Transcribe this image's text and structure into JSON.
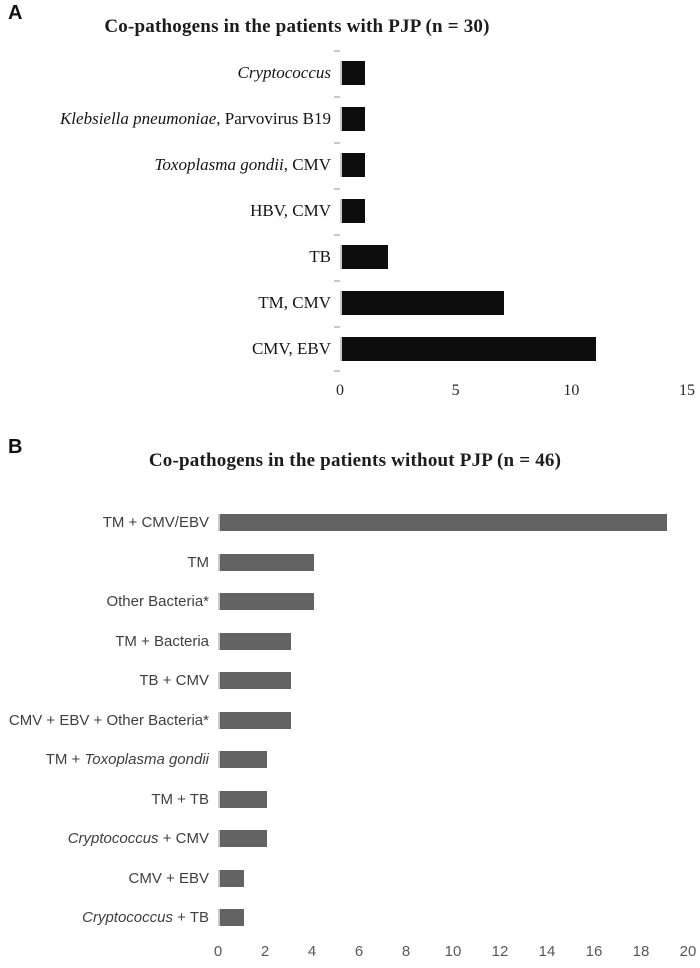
{
  "panels": [
    {
      "letter": "A",
      "title": "Co-pathogens in the patients with PJP (n = 30)"
    },
    {
      "letter": "B",
      "title": "Co-pathogens in the patients without PJP (n = 46)"
    }
  ],
  "chart_data": [
    {
      "id": "chart-a",
      "type": "bar",
      "orientation": "horizontal",
      "title": "Co-pathogens in the patients with PJP (n = 30)",
      "categories": [
        "Cryptococcus",
        "Klebsiella pneumoniae, Parvovirus B19",
        "Toxoplasma gondii, CMV",
        "HBV, CMV",
        "TB",
        "TM, CMV",
        "CMV, EBV"
      ],
      "label_segments": [
        [
          {
            "t": "Cryptococcus",
            "i": true
          }
        ],
        [
          {
            "t": "Klebsiella pneumoniae",
            "i": true
          },
          {
            "t": ", Parvovirus B19",
            "i": false
          }
        ],
        [
          {
            "t": "Toxoplasma gondii",
            "i": true
          },
          {
            "t": ", CMV",
            "i": false
          }
        ],
        [
          {
            "t": "HBV, CMV",
            "i": false
          }
        ],
        [
          {
            "t": "TB",
            "i": false
          }
        ],
        [
          {
            "t": "TM, CMV",
            "i": false
          }
        ],
        [
          {
            "t": "CMV, EBV",
            "i": false
          }
        ]
      ],
      "values": [
        1,
        1,
        1,
        1,
        2,
        7,
        11
      ],
      "xlim": [
        0,
        15
      ],
      "xticks": [
        0,
        5,
        10,
        15
      ],
      "bar_color": "#0d0d0d",
      "axis_color": "#c9c9c9",
      "grid": false,
      "legend": false
    },
    {
      "id": "chart-b",
      "type": "bar",
      "orientation": "horizontal",
      "title": "Co-pathogens in the patients without PJP (n = 46)",
      "categories": [
        "TM + CMV/EBV",
        "TM",
        "Other Bacteria*",
        "TM + Bacteria",
        "TB + CMV",
        "CMV + EBV + Other Bacteria*",
        "TM + Toxoplasma gondii",
        "TM + TB",
        "Cryptococcus + CMV",
        "CMV + EBV",
        "Cryptococcus + TB"
      ],
      "label_segments": [
        [
          {
            "t": "TM + CMV/EBV",
            "i": false
          }
        ],
        [
          {
            "t": "TM",
            "i": false
          }
        ],
        [
          {
            "t": "Other Bacteria*",
            "i": false
          }
        ],
        [
          {
            "t": "TM + Bacteria",
            "i": false
          }
        ],
        [
          {
            "t": "TB + CMV",
            "i": false
          }
        ],
        [
          {
            "t": "CMV + EBV + Other Bacteria*",
            "i": false
          }
        ],
        [
          {
            "t": "TM + ",
            "i": false
          },
          {
            "t": "Toxoplasma gondii",
            "i": true
          }
        ],
        [
          {
            "t": "TM + TB",
            "i": false
          }
        ],
        [
          {
            "t": "Cryptococcus",
            "i": true
          },
          {
            "t": " + CMV",
            "i": false
          }
        ],
        [
          {
            "t": "CMV + EBV",
            "i": false
          }
        ],
        [
          {
            "t": "Cryptococcus",
            "i": true
          },
          {
            "t": " + TB",
            "i": false
          }
        ]
      ],
      "values": [
        19,
        4,
        4,
        3,
        3,
        3,
        2,
        2,
        2,
        1,
        1
      ],
      "xlim": [
        0,
        20
      ],
      "xticks": [
        0,
        2,
        4,
        6,
        8,
        10,
        12,
        14,
        16,
        18,
        20
      ],
      "bar_color": "#636363",
      "axis_color": "#c9c9c9",
      "grid": false,
      "legend": false
    }
  ]
}
